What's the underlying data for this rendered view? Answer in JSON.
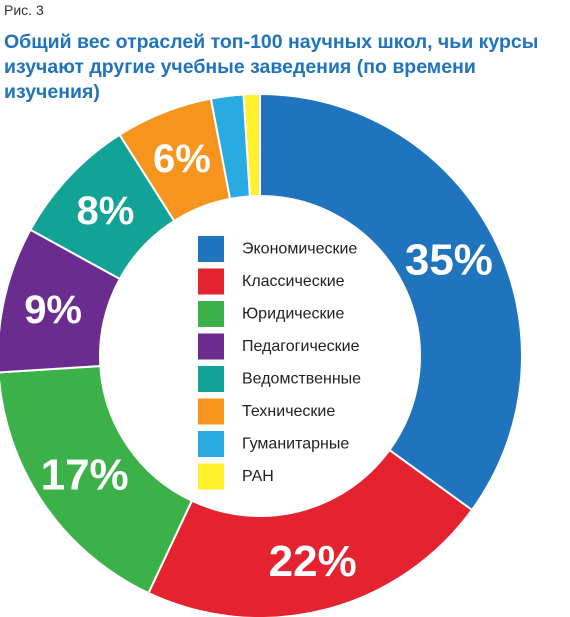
{
  "figure_label": "Рис. 3",
  "title_line1": "Общий вес отраслей топ-100 научных школ, чьи курсы",
  "title_line2": "изучают другие учебные заведения (по времени изучения)",
  "chart_data": {
    "type": "pie",
    "variant": "donut",
    "title": "Общий вес отраслей топ-100 научных школ, чьи курсы изучают другие учебные заведения (по времени изучения)",
    "unit": "%",
    "legend_placement": "center",
    "slices": [
      {
        "name": "Экономические",
        "value": 35,
        "label": "35%",
        "color": "#1f74bd"
      },
      {
        "name": "Классические",
        "value": 22,
        "label": "22%",
        "color": "#e42230"
      },
      {
        "name": "Юридические",
        "value": 17,
        "label": "17%",
        "color": "#3cb14a"
      },
      {
        "name": "Педагогические",
        "value": 9,
        "label": "9%",
        "color": "#6a2d8f"
      },
      {
        "name": "Ведомственные",
        "value": 8,
        "label": "8%",
        "color": "#13a396"
      },
      {
        "name": "Технические",
        "value": 6,
        "label": "6%",
        "color": "#f7941d"
      },
      {
        "name": "Гуманитарные",
        "value": 2,
        "label": "2%",
        "color": "#29abe2"
      },
      {
        "name": "РАН",
        "value": 1,
        "label": "1%",
        "color": "#fff22d"
      }
    ]
  }
}
